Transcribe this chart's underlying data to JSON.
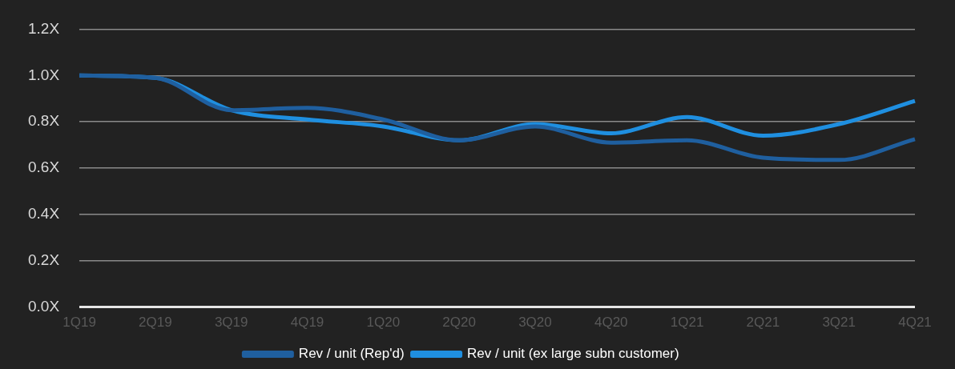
{
  "chart_data": {
    "type": "line",
    "categories": [
      "1Q19",
      "2Q19",
      "3Q19",
      "4Q19",
      "1Q20",
      "2Q20",
      "3Q20",
      "4Q20",
      "1Q21",
      "2Q21",
      "3Q21",
      "4Q21"
    ],
    "series": [
      {
        "name": "Rev / unit (Rep'd)",
        "color": "#1f5f9f",
        "values": [
          1.0,
          0.99,
          0.85,
          0.86,
          0.81,
          0.72,
          0.78,
          0.71,
          0.72,
          0.645,
          0.635,
          0.725
        ]
      },
      {
        "name": "Rev / unit (ex large subn customer)",
        "color": "#1f8fe0",
        "values": [
          1.0,
          0.99,
          0.85,
          0.81,
          0.78,
          0.72,
          0.79,
          0.75,
          0.82,
          0.74,
          0.79,
          0.89
        ]
      }
    ],
    "ylim": [
      0,
      1.2
    ],
    "yticks": [
      {
        "value": 0,
        "label": "0.0X"
      },
      {
        "value": 0.2,
        "label": "0.2X"
      },
      {
        "value": 0.4,
        "label": "0.4X"
      },
      {
        "value": 0.6,
        "label": "0.6X"
      },
      {
        "value": 0.8,
        "label": "0.8X"
      },
      {
        "value": 1.0,
        "label": "1.0X"
      },
      {
        "value": 1.2,
        "label": "1.2X"
      }
    ],
    "grid": "y",
    "legend": "bottom",
    "marker": "none",
    "line_style": "solid"
  }
}
